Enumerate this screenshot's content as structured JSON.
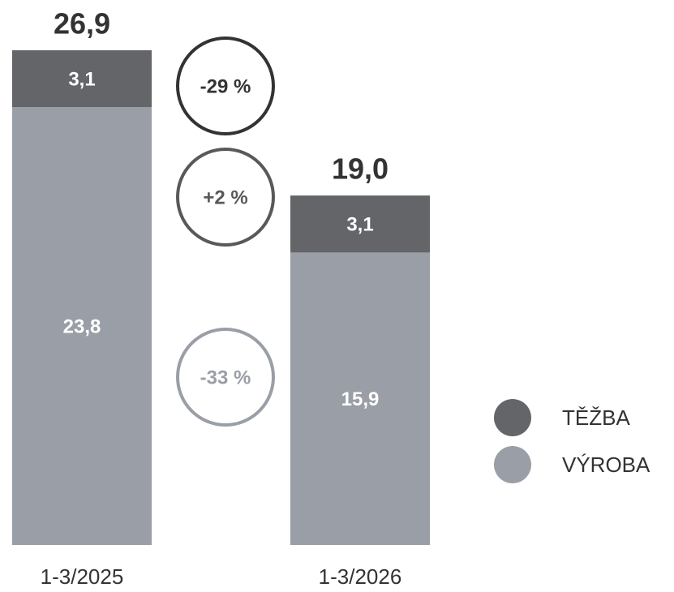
{
  "chart_data": {
    "type": "stacked_bar",
    "categories": [
      "1-3/2025",
      "1-3/2026"
    ],
    "series": [
      {
        "name": "VÝROBA",
        "color": "#9a9ea6",
        "values": [
          23.8,
          15.9
        ],
        "value_labels": [
          "23,8",
          "15,9"
        ]
      },
      {
        "name": "TĚŽBA",
        "color": "#636569",
        "values": [
          3.1,
          3.1
        ],
        "value_labels": [
          "3,1",
          "3,1"
        ]
      }
    ],
    "totals": [
      26.9,
      19.0
    ],
    "total_labels": [
      "26,9",
      "19,0"
    ],
    "annotations": [
      {
        "text": "-29 %",
        "color": "#333333"
      },
      {
        "text": "+2 %",
        "color": "#58595b"
      },
      {
        "text": "-33 %",
        "color": "#9a9ea6"
      }
    ]
  }
}
